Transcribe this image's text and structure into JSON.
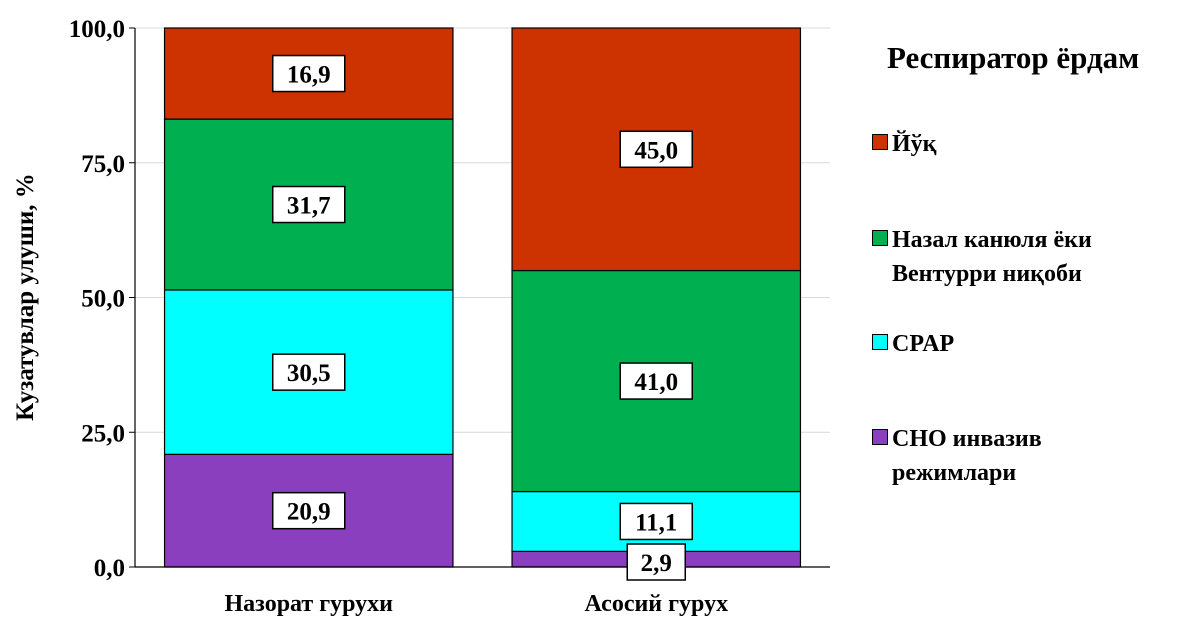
{
  "chart_data": {
    "type": "bar",
    "stacked": true,
    "categories": [
      "Назорат гурухи",
      "Асосий гурух"
    ],
    "series": [
      {
        "name": "СНО инвазив режимлари",
        "values": [
          20.9,
          2.9
        ],
        "labels": [
          "20,9",
          "2,9"
        ],
        "color": "#8a3fbe"
      },
      {
        "name": "CPAP",
        "values": [
          30.5,
          11.1
        ],
        "labels": [
          "30,5",
          "11,1"
        ],
        "color": "#00ffff"
      },
      {
        "name": "Назал канюля ёки Вентурри ниқоби",
        "values": [
          31.7,
          41.0
        ],
        "labels": [
          "31,7",
          "41,0"
        ],
        "color": "#00b050"
      },
      {
        "name": "Йўқ",
        "values": [
          16.9,
          45.0
        ],
        "labels": [
          "16,9",
          "45,0"
        ],
        "color": "#cc3300"
      }
    ],
    "ylabel": "Кузатувлар улуши, %",
    "ylim": [
      0,
      100
    ],
    "yticks": [
      0,
      25,
      50,
      75,
      100
    ],
    "ytick_labels": [
      "0,0",
      "25,0",
      "50,0",
      "75,0",
      "100,0"
    ],
    "grid": true,
    "legend_title": "Респиратор ёрдам",
    "legend_position": "right",
    "legend_items": [
      {
        "name": "Йўқ",
        "lines": [
          "Йўқ"
        ],
        "color": "#cc3300"
      },
      {
        "name": "Назал канюля ёки Вентурри ниқоби",
        "lines": [
          "Назал канюля ёки",
          "Вентурри ниқоби"
        ],
        "color": "#00b050"
      },
      {
        "name": "CPAP",
        "lines": [
          "CPAP"
        ],
        "color": "#00ffff"
      },
      {
        "name": "СНО инвазив режимлари",
        "lines": [
          "СНО инвазив",
          "режимлари"
        ],
        "color": "#8a3fbe"
      }
    ]
  }
}
